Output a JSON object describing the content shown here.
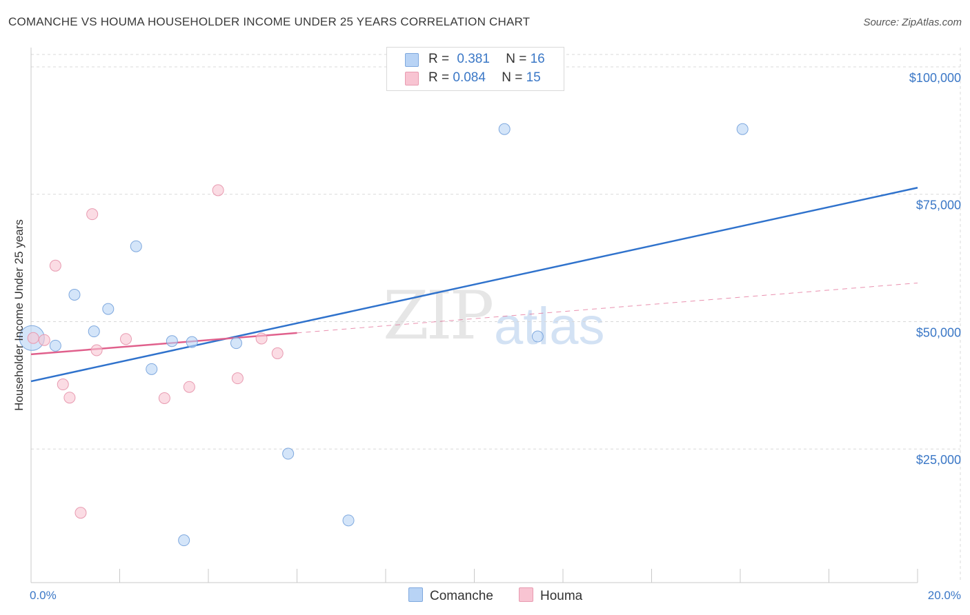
{
  "title": "COMANCHE VS HOUMA HOUSEHOLDER INCOME UNDER 25 YEARS CORRELATION CHART",
  "source": "Source: ZipAtlas.com",
  "watermark": {
    "zip": "ZIP",
    "atlas": "atlas"
  },
  "legend": {
    "comanche": {
      "r_label": "R = ",
      "r_value": "0.381",
      "n_label": "N = ",
      "n_value": "16"
    },
    "houma": {
      "r_label": "R = ",
      "r_value": "0.084",
      "n_label": "N = ",
      "n_value": "15"
    }
  },
  "colors": {
    "comanche_fill": "#b8d3f5",
    "comanche_stroke": "#7ea8de",
    "comanche_line": "#2f72cc",
    "houma_fill": "#f8c4d2",
    "houma_stroke": "#e89ab0",
    "houma_line": "#e0608c",
    "grid": "#d8d8d8",
    "tick_text": "#3a77c6"
  },
  "chart_data": {
    "type": "scatter",
    "title": "COMANCHE VS HOUMA HOUSEHOLDER INCOME UNDER 25 YEARS CORRELATION CHART",
    "xlabel": "",
    "ylabel": "Householder Income Under 25 years",
    "xlim": [
      0,
      20
    ],
    "ylim": [
      0,
      105000
    ],
    "x_tick_labels": [
      "0.0%",
      "20.0%"
    ],
    "y_ticks": [
      25000,
      50000,
      75000,
      100000
    ],
    "y_tick_labels": [
      "$25,000",
      "$50,000",
      "$75,000",
      "$100,000"
    ],
    "legend_position": "top-center",
    "series": [
      {
        "name": "Comanche",
        "r": 0.381,
        "n": 16,
        "points": [
          {
            "x": 0.02,
            "y": 48000,
            "big": true
          },
          {
            "x": 0.55,
            "y": 46500
          },
          {
            "x": 0.98,
            "y": 56500
          },
          {
            "x": 1.42,
            "y": 49300
          },
          {
            "x": 1.74,
            "y": 53700
          },
          {
            "x": 2.37,
            "y": 66000
          },
          {
            "x": 2.72,
            "y": 41900
          },
          {
            "x": 3.18,
            "y": 47400
          },
          {
            "x": 3.45,
            "y": 8300
          },
          {
            "x": 3.63,
            "y": 47200
          },
          {
            "x": 4.63,
            "y": 47000
          },
          {
            "x": 5.8,
            "y": 25300
          },
          {
            "x": 7.16,
            "y": 12200
          },
          {
            "x": 10.68,
            "y": 89000
          },
          {
            "x": 11.43,
            "y": 48300
          },
          {
            "x": 16.05,
            "y": 89000
          }
        ],
        "trend": {
          "x0": 0,
          "y0": 39500,
          "x1": 20,
          "y1": 77500
        }
      },
      {
        "name": "Houma",
        "r": 0.084,
        "n": 15,
        "points": [
          {
            "x": 0.05,
            "y": 48000
          },
          {
            "x": 0.3,
            "y": 47600
          },
          {
            "x": 0.55,
            "y": 62200
          },
          {
            "x": 0.72,
            "y": 38900
          },
          {
            "x": 0.87,
            "y": 36300
          },
          {
            "x": 1.12,
            "y": 13700
          },
          {
            "x": 1.38,
            "y": 72300
          },
          {
            "x": 1.48,
            "y": 45600
          },
          {
            "x": 2.14,
            "y": 47800
          },
          {
            "x": 3.01,
            "y": 36200
          },
          {
            "x": 3.57,
            "y": 38400
          },
          {
            "x": 4.22,
            "y": 77000
          },
          {
            "x": 4.66,
            "y": 40100
          },
          {
            "x": 5.2,
            "y": 47900
          },
          {
            "x": 5.56,
            "y": 45000
          }
        ],
        "trend": {
          "x0": 0,
          "y0": 44800,
          "x1": 6,
          "y1": 49000
        },
        "trend_extension": {
          "x0": 6,
          "y0": 49000,
          "x1": 20,
          "y1": 58800
        }
      }
    ]
  },
  "bottom_legend": {
    "comanche": "Comanche",
    "houma": "Houma"
  }
}
